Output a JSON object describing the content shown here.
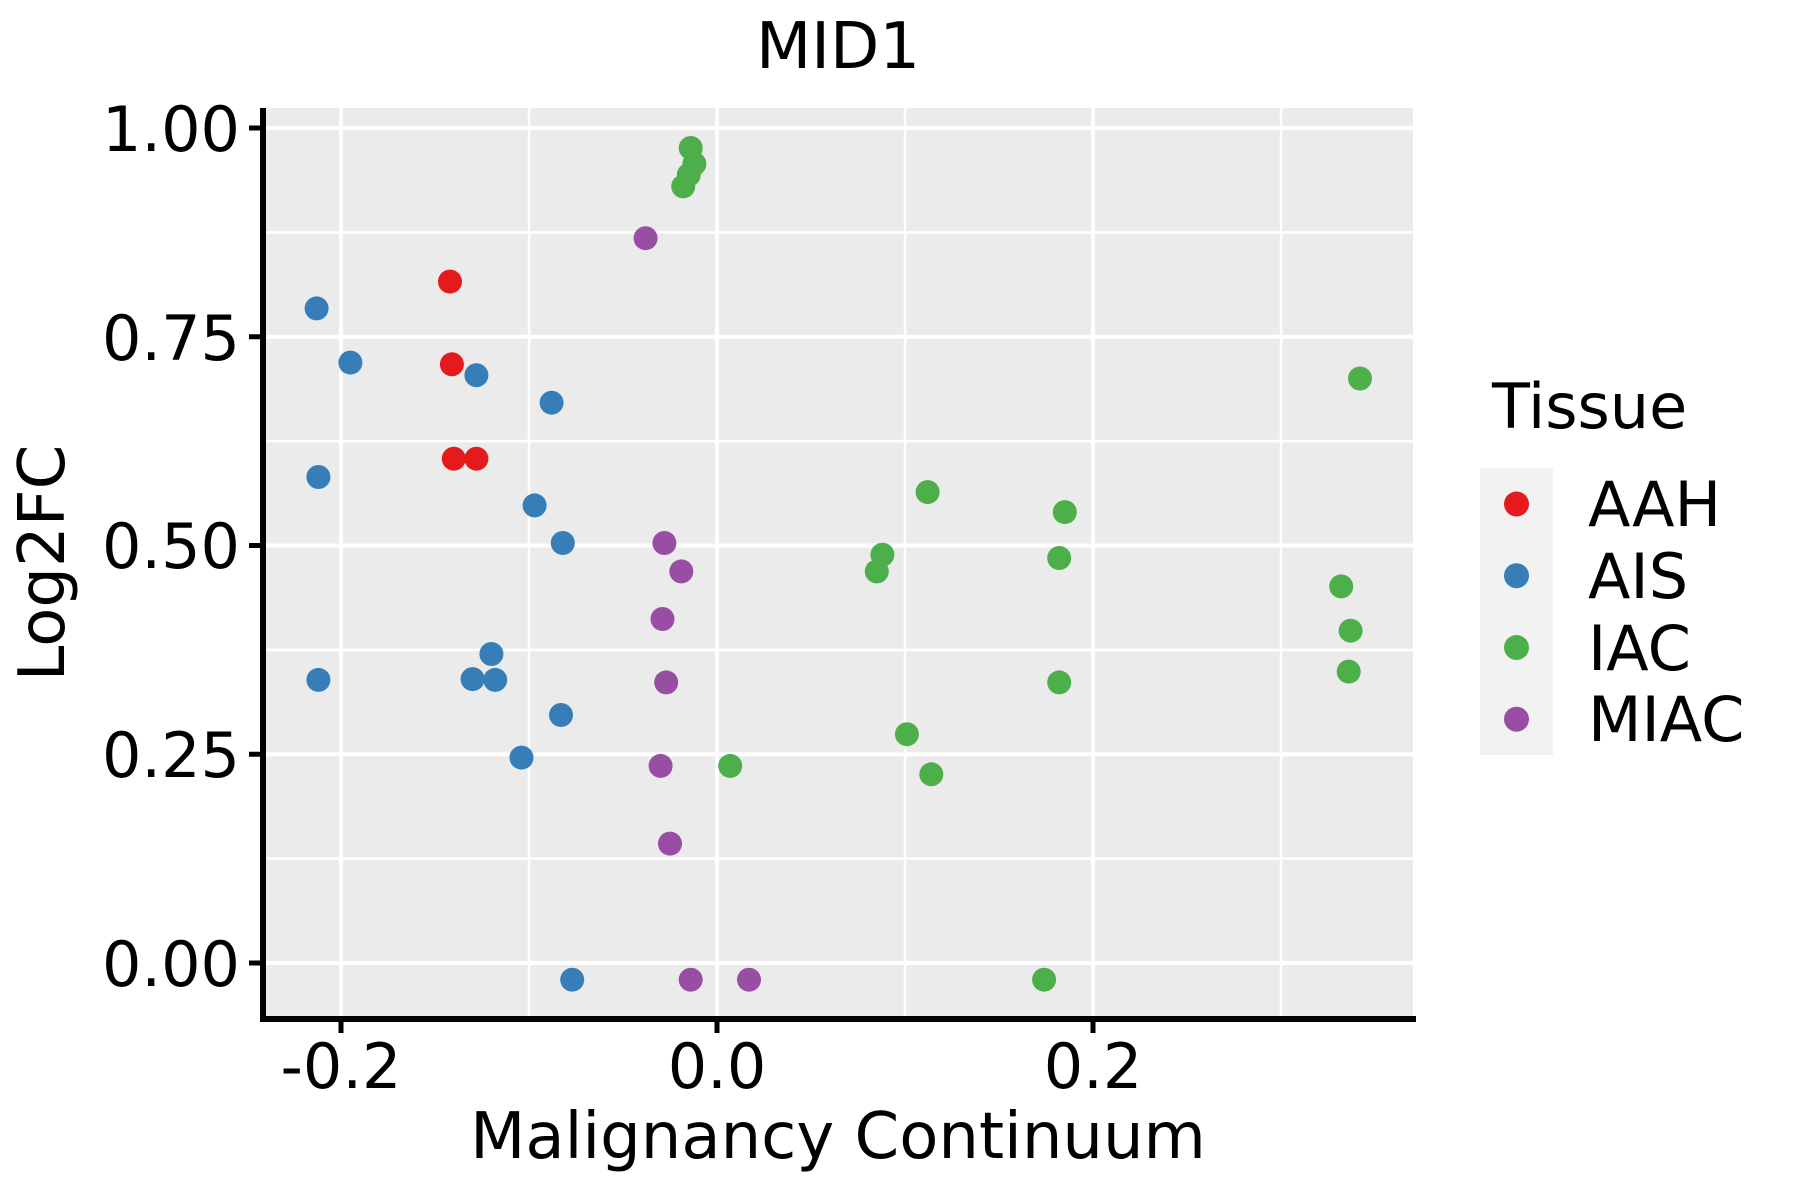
{
  "chart_data": {
    "type": "scatter",
    "title": "MID1",
    "xlabel": "Malignancy Continuum",
    "ylabel": "Log2FC",
    "xlim": [
      -0.2415,
      0.3702
    ],
    "ylim": [
      -0.067,
      1.024
    ],
    "grid": true,
    "panel_background": "#EBEBEB",
    "gridline_color": "#FFFFFF",
    "legend_key_background": "#F2F2F2",
    "legend_position": "right",
    "legend_title": "Tissue",
    "x_ticks": [
      {
        "value": -0.2,
        "label": "-0.2"
      },
      {
        "value": 0.0,
        "label": "0.0"
      },
      {
        "value": 0.2,
        "label": "0.2"
      }
    ],
    "x_minor": [
      -0.1,
      0.1,
      0.3
    ],
    "y_ticks": [
      {
        "value": 0.0,
        "label": "0.00"
      },
      {
        "value": 0.25,
        "label": "0.25"
      },
      {
        "value": 0.5,
        "label": "0.50"
      },
      {
        "value": 0.75,
        "label": "0.75"
      },
      {
        "value": 1.0,
        "label": "1.00"
      }
    ],
    "y_minor": [
      0.125,
      0.375,
      0.625,
      0.875
    ],
    "series": [
      {
        "name": "AAH",
        "color": "#E41A1C",
        "points": [
          [
            -0.142,
            0.816
          ],
          [
            -0.141,
            0.717
          ],
          [
            -0.14,
            0.604
          ],
          [
            -0.128,
            0.604
          ]
        ]
      },
      {
        "name": "AIS",
        "color": "#377EB8",
        "points": [
          [
            -0.213,
            0.784
          ],
          [
            -0.195,
            0.719
          ],
          [
            -0.128,
            0.704
          ],
          [
            -0.088,
            0.671
          ],
          [
            -0.212,
            0.582
          ],
          [
            -0.097,
            0.548
          ],
          [
            -0.082,
            0.503
          ],
          [
            -0.12,
            0.37
          ],
          [
            -0.13,
            0.34
          ],
          [
            -0.118,
            0.339
          ],
          [
            -0.212,
            0.339
          ],
          [
            -0.083,
            0.297
          ],
          [
            -0.104,
            0.246
          ],
          [
            -0.077,
            -0.02
          ]
        ]
      },
      {
        "name": "IAC",
        "color": "#4DAF4A",
        "points": [
          [
            -0.014,
            0.976
          ],
          [
            -0.012,
            0.957
          ],
          [
            -0.015,
            0.944
          ],
          [
            -0.018,
            0.93
          ],
          [
            0.342,
            0.7
          ],
          [
            0.112,
            0.564
          ],
          [
            0.185,
            0.54
          ],
          [
            0.182,
            0.485
          ],
          [
            0.088,
            0.489
          ],
          [
            0.085,
            0.469
          ],
          [
            0.332,
            0.451
          ],
          [
            0.337,
            0.398
          ],
          [
            0.336,
            0.349
          ],
          [
            0.182,
            0.336
          ],
          [
            0.101,
            0.274
          ],
          [
            0.007,
            0.236
          ],
          [
            0.114,
            0.226
          ],
          [
            0.174,
            -0.02
          ]
        ]
      },
      {
        "name": "MIAC",
        "color": "#984EA3",
        "points": [
          [
            -0.038,
            0.868
          ],
          [
            -0.028,
            0.503
          ],
          [
            -0.019,
            0.469
          ],
          [
            -0.029,
            0.412
          ],
          [
            -0.027,
            0.336
          ],
          [
            -0.03,
            0.236
          ],
          [
            -0.025,
            0.143
          ],
          [
            -0.014,
            -0.02
          ],
          [
            0.017,
            -0.02
          ]
        ]
      }
    ]
  }
}
